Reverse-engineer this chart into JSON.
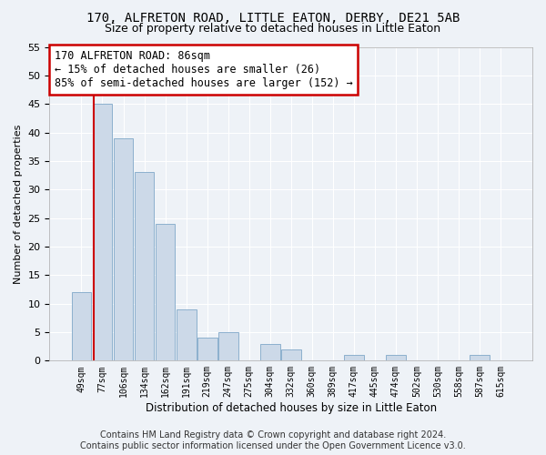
{
  "title": "170, ALFRETON ROAD, LITTLE EATON, DERBY, DE21 5AB",
  "subtitle": "Size of property relative to detached houses in Little Eaton",
  "xlabel": "Distribution of detached houses by size in Little Eaton",
  "ylabel": "Number of detached properties",
  "bar_labels": [
    "49sqm",
    "77sqm",
    "106sqm",
    "134sqm",
    "162sqm",
    "191sqm",
    "219sqm",
    "247sqm",
    "275sqm",
    "304sqm",
    "332sqm",
    "360sqm",
    "389sqm",
    "417sqm",
    "445sqm",
    "474sqm",
    "502sqm",
    "530sqm",
    "558sqm",
    "587sqm",
    "615sqm"
  ],
  "bar_values": [
    12,
    45,
    39,
    33,
    24,
    9,
    4,
    5,
    0,
    3,
    2,
    0,
    0,
    1,
    0,
    1,
    0,
    0,
    0,
    1,
    0
  ],
  "bar_color": "#ccd9e8",
  "bar_edge_color": "#7fa8c8",
  "red_line_x": 0.575,
  "annotation_text": "170 ALFRETON ROAD: 86sqm\n← 15% of detached houses are smaller (26)\n85% of semi-detached houses are larger (152) →",
  "annotation_box_color": "#ffffff",
  "annotation_box_edge": "#cc0000",
  "red_line_color": "#cc0000",
  "ylim": [
    0,
    55
  ],
  "yticks": [
    0,
    5,
    10,
    15,
    20,
    25,
    30,
    35,
    40,
    45,
    50,
    55
  ],
  "footer_line1": "Contains HM Land Registry data © Crown copyright and database right 2024.",
  "footer_line2": "Contains public sector information licensed under the Open Government Licence v3.0.",
  "background_color": "#eef2f7",
  "grid_color": "#ffffff",
  "title_fontsize": 10,
  "subtitle_fontsize": 9,
  "annotation_fontsize": 8.5,
  "footer_fontsize": 7,
  "ylabel_fontsize": 8,
  "xlabel_fontsize": 8.5
}
